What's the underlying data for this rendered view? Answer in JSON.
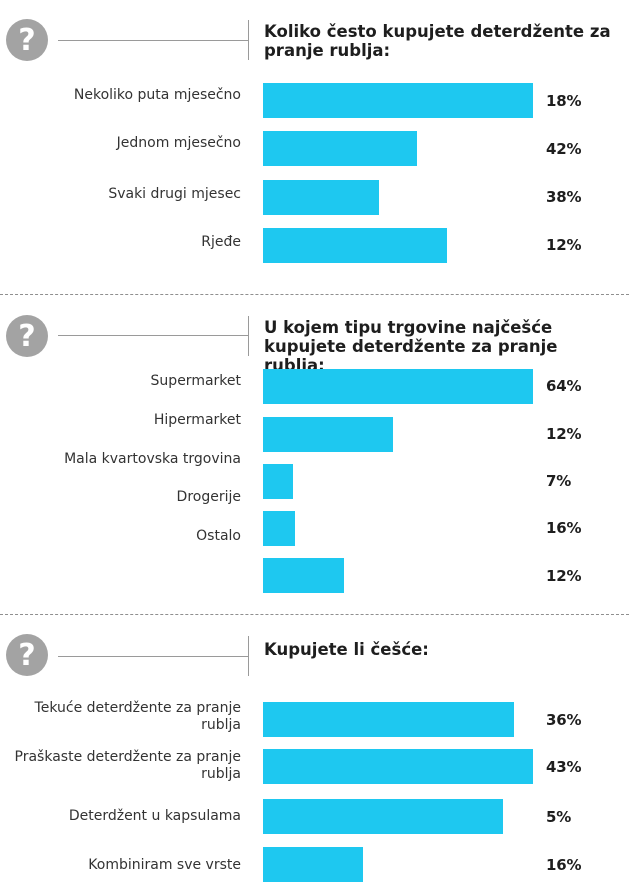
{
  "colors": {
    "bar": "#1ec8f0",
    "icon": "#a3a3a3"
  },
  "icon_name": "question-mark-icon",
  "icon_glyph": "?",
  "chart_data": [
    {
      "type": "bar",
      "orientation": "horizontal",
      "title": "Koliko često kupujete deterdžente za pranje rublja:",
      "categories": [
        "Nekoliko puta mjesečno",
        "Jednom mjesečno",
        "Svaki drugi mjesec",
        "Rjeđe"
      ],
      "values": [
        18,
        42,
        38,
        12
      ],
      "value_labels": [
        "18%",
        "42%",
        "38%",
        "12%"
      ],
      "bar_lengths": [
        100,
        57,
        43,
        68
      ]
    },
    {
      "type": "bar",
      "orientation": "horizontal",
      "title": "U kojem tipu trgovine najčešće kupujete deterdžente za pranje rublja:",
      "categories": [
        "Supermarket",
        "Hipermarket",
        "Mala kvartovska trgovina",
        "Drogerije",
        "Ostalo"
      ],
      "values": [
        64,
        12,
        7,
        16,
        12
      ],
      "value_labels": [
        "64%",
        "12%",
        "7%",
        "16%",
        "12%"
      ],
      "bar_lengths": [
        100,
        48,
        11,
        12,
        30
      ]
    },
    {
      "type": "bar",
      "orientation": "horizontal",
      "title": "Kupujete li češće:",
      "categories": [
        "Tekuće deterdžente za pranje rublja",
        "Praškaste deterdžente za pranje rublja",
        "Deterdžent u kapsulama",
        "Kombiniram sve vrste"
      ],
      "values": [
        36,
        43,
        5,
        16
      ],
      "value_labels": [
        "36%",
        "43%",
        "5%",
        "16%"
      ],
      "bar_lengths": [
        93,
        100,
        89,
        37
      ]
    }
  ]
}
